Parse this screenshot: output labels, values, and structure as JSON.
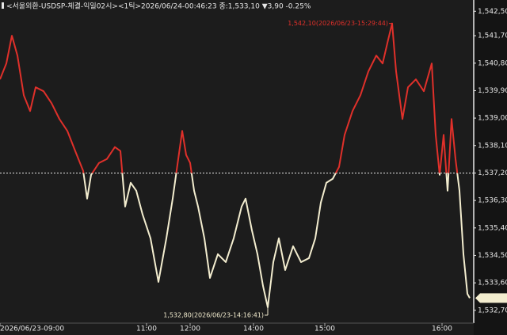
{
  "chart_data": {
    "type": "line",
    "title": "<서울외환-USDSP-체결-익일02시><1틱>2026/06/24-00:46:23 종:1,533,10 ▼3,90 -0.25%",
    "x": [
      0,
      8,
      15,
      22,
      30,
      38,
      45,
      55,
      65,
      75,
      85,
      95,
      105,
      110,
      115,
      125,
      135,
      145,
      152,
      158,
      165,
      172,
      180,
      190,
      200,
      210,
      218,
      225,
      230,
      235,
      240,
      245,
      250,
      258,
      265,
      275,
      285,
      295,
      305,
      310,
      318,
      325,
      332,
      338,
      345,
      352,
      360,
      370,
      380,
      390,
      398,
      405,
      412,
      420,
      428,
      435,
      445,
      455,
      465,
      475,
      483,
      490,
      495,
      500,
      508,
      515,
      525,
      535,
      545,
      550,
      555,
      560,
      565,
      570,
      575,
      580,
      585,
      590,
      593
    ],
    "series": [
      {
        "name": "USDSP",
        "color_above": "#e0302a",
        "color_below": "#f3edcf",
        "values": [
          1540.27,
          1540.79,
          1541.7,
          1541.05,
          1539.75,
          1539.23,
          1540.01,
          1539.88,
          1539.49,
          1538.97,
          1538.58,
          1537.92,
          1537.27,
          1536.36,
          1537.14,
          1537.53,
          1537.66,
          1538.05,
          1537.92,
          1536.1,
          1536.88,
          1536.62,
          1535.84,
          1535.06,
          1533.63,
          1535.06,
          1536.36,
          1537.66,
          1538.58,
          1537.79,
          1537.53,
          1536.62,
          1536.1,
          1535.06,
          1533.76,
          1534.54,
          1534.28,
          1535.06,
          1536.1,
          1536.36,
          1535.32,
          1534.54,
          1533.5,
          1532.8,
          1534.28,
          1535.06,
          1534.02,
          1534.8,
          1534.28,
          1534.41,
          1535.06,
          1536.23,
          1536.88,
          1537.01,
          1537.4,
          1538.45,
          1539.23,
          1539.75,
          1540.53,
          1541.05,
          1540.79,
          1541.57,
          1542.1,
          1540.53,
          1538.97,
          1540.01,
          1540.27,
          1539.88,
          1540.79,
          1538.45,
          1537.14,
          1538.45,
          1536.62,
          1538.97,
          1537.66,
          1536.62,
          1534.54,
          1533.24,
          1533.1
        ]
      }
    ],
    "reference": 1537.2,
    "last": 1533.1,
    "xlim": [
      0,
      598
    ],
    "xticks": [
      {
        "value": 0,
        "label": "2026/06/23-09:00"
      },
      {
        "value": 185,
        "label": "11:00"
      },
      {
        "value": 240,
        "label": "12:00"
      },
      {
        "value": 320,
        "label": "14:00"
      },
      {
        "value": 410,
        "label": "15:00"
      },
      {
        "value": 558,
        "label": "16:00"
      }
    ],
    "ylim": [
      1532.28,
      1542.87
    ],
    "yticks": [
      {
        "value": 1542.5,
        "label": "1,542,50"
      },
      {
        "value": 1541.7,
        "label": "1,541,70"
      },
      {
        "value": 1540.8,
        "label": "1,540,80"
      },
      {
        "value": 1539.9,
        "label": "1,539,90"
      },
      {
        "value": 1539.0,
        "label": "1,539,00"
      },
      {
        "value": 1538.1,
        "label": "1,538,10"
      },
      {
        "value": 1537.2,
        "label": "1,537,20"
      },
      {
        "value": 1536.3,
        "label": "1,536,30"
      },
      {
        "value": 1535.4,
        "label": "1,535,40"
      },
      {
        "value": 1534.5,
        "label": "1,534,50"
      },
      {
        "value": 1533.6,
        "label": "1,533,60"
      },
      {
        "value": 1532.7,
        "label": "1,532,70"
      }
    ],
    "annotations": [
      {
        "text": "1,542,10(2026/06/23-15:29:44)",
        "x": 495,
        "y": 1542.1
      },
      {
        "text": "1,532,80(2026/06/23-14:16:41)",
        "x": 338,
        "y": 1532.8
      }
    ]
  }
}
